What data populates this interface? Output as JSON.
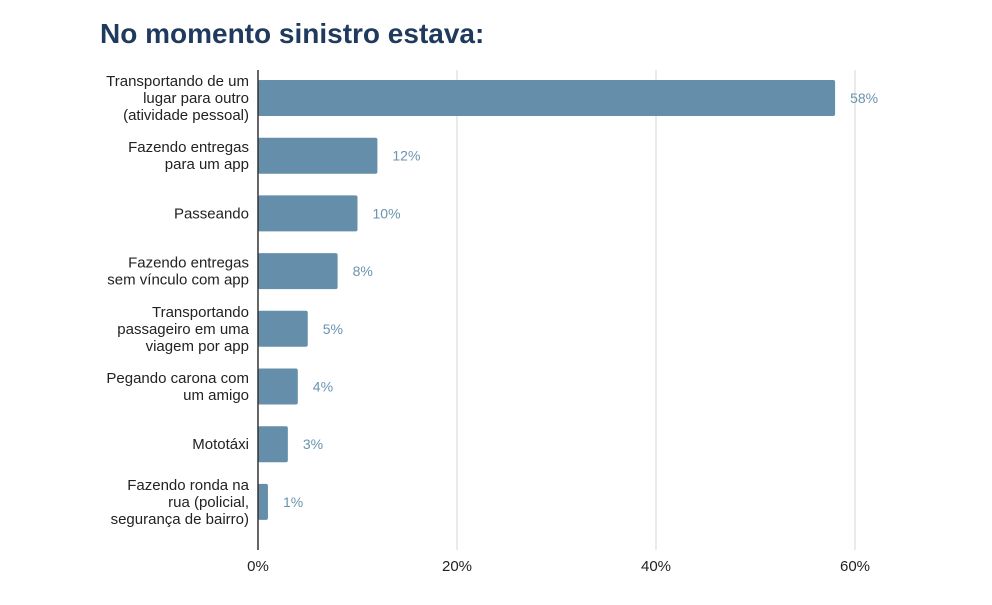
{
  "chart_data": {
    "type": "bar",
    "orientation": "horizontal",
    "title": "No momento sinistro estava:",
    "categories": [
      [
        "Transportando de um",
        "lugar para outro",
        "(atividade pessoal)"
      ],
      [
        "Fazendo entregas",
        "para um app"
      ],
      [
        "Passeando"
      ],
      [
        "Fazendo entregas",
        "sem vínculo com app"
      ],
      [
        "Transportando",
        "passageiro em uma",
        "viagem por app"
      ],
      [
        "Pegando carona com",
        "um amigo"
      ],
      [
        "Mototáxi"
      ],
      [
        "Fazendo ronda na",
        "rua (policial,",
        "segurança de bairro)"
      ]
    ],
    "values": [
      58,
      12,
      10,
      8,
      5,
      4,
      3,
      1
    ],
    "value_labels": [
      "58%",
      "12%",
      "10%",
      "8%",
      "5%",
      "4%",
      "3%",
      "1%"
    ],
    "xlim": [
      0,
      60
    ],
    "xticks": [
      0,
      20,
      40,
      60
    ],
    "xtick_labels": [
      "0%",
      "20%",
      "40%",
      "60%"
    ],
    "grid": true,
    "bar_color": "#648ea9",
    "value_label_color": "#6a93ad",
    "title_color": "#1f3a5c",
    "grid_color": "#d4d4d4"
  }
}
